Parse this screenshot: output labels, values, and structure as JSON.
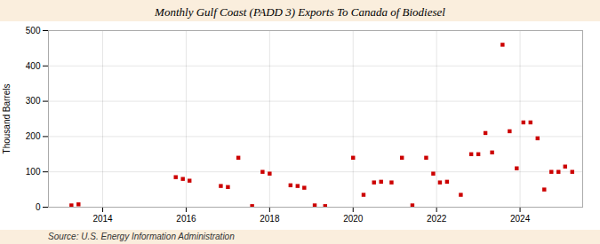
{
  "chart_data": {
    "type": "scatter",
    "title": "Monthly Gulf Coast (PADD 3) Exports To Canada of Biodiesel",
    "ylabel": "Thousand Barrels",
    "source": "Source: U.S. Energy Information Administration",
    "color": "#cc0000",
    "marker": "square",
    "grid": true,
    "xlim": [
      2012.7,
      2025.5
    ],
    "xticks": [
      2014,
      2016,
      2018,
      2020,
      2022,
      2024
    ],
    "ylim": [
      0,
      500
    ],
    "yticks": [
      0,
      100,
      200,
      300,
      400,
      500
    ],
    "x": [
      2013.25,
      2013.42,
      2015.75,
      2015.92,
      2016.08,
      2016.83,
      2017.0,
      2017.25,
      2017.58,
      2017.83,
      2018.0,
      2018.5,
      2018.67,
      2018.83,
      2019.08,
      2019.33,
      2020.0,
      2020.25,
      2020.5,
      2020.67,
      2020.92,
      2021.17,
      2021.42,
      2021.75,
      2021.92,
      2022.08,
      2022.25,
      2022.58,
      2022.83,
      2023.0,
      2023.17,
      2023.33,
      2023.58,
      2023.75,
      2023.92,
      2024.08,
      2024.25,
      2024.42,
      2024.58,
      2024.75,
      2024.92,
      2025.08,
      2025.25
    ],
    "values": [
      5,
      8,
      85,
      80,
      75,
      60,
      57,
      140,
      3,
      100,
      95,
      62,
      60,
      55,
      5,
      3,
      140,
      35,
      70,
      72,
      70,
      140,
      5,
      140,
      95,
      70,
      72,
      35,
      150,
      150,
      210,
      155,
      460,
      215,
      110,
      240,
      240,
      195,
      50,
      100,
      100,
      115,
      100
    ]
  }
}
